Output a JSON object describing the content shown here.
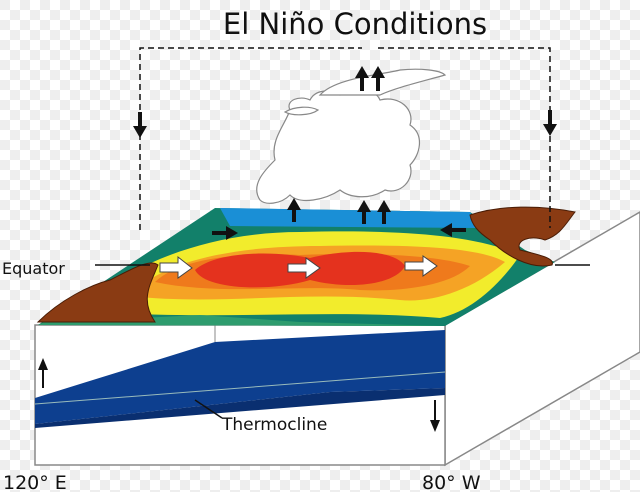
{
  "title": "El Niño Conditions",
  "labels": {
    "equator": "Equator",
    "thermocline": "Thermocline",
    "west": "120° E",
    "east": "80° W"
  }
}
